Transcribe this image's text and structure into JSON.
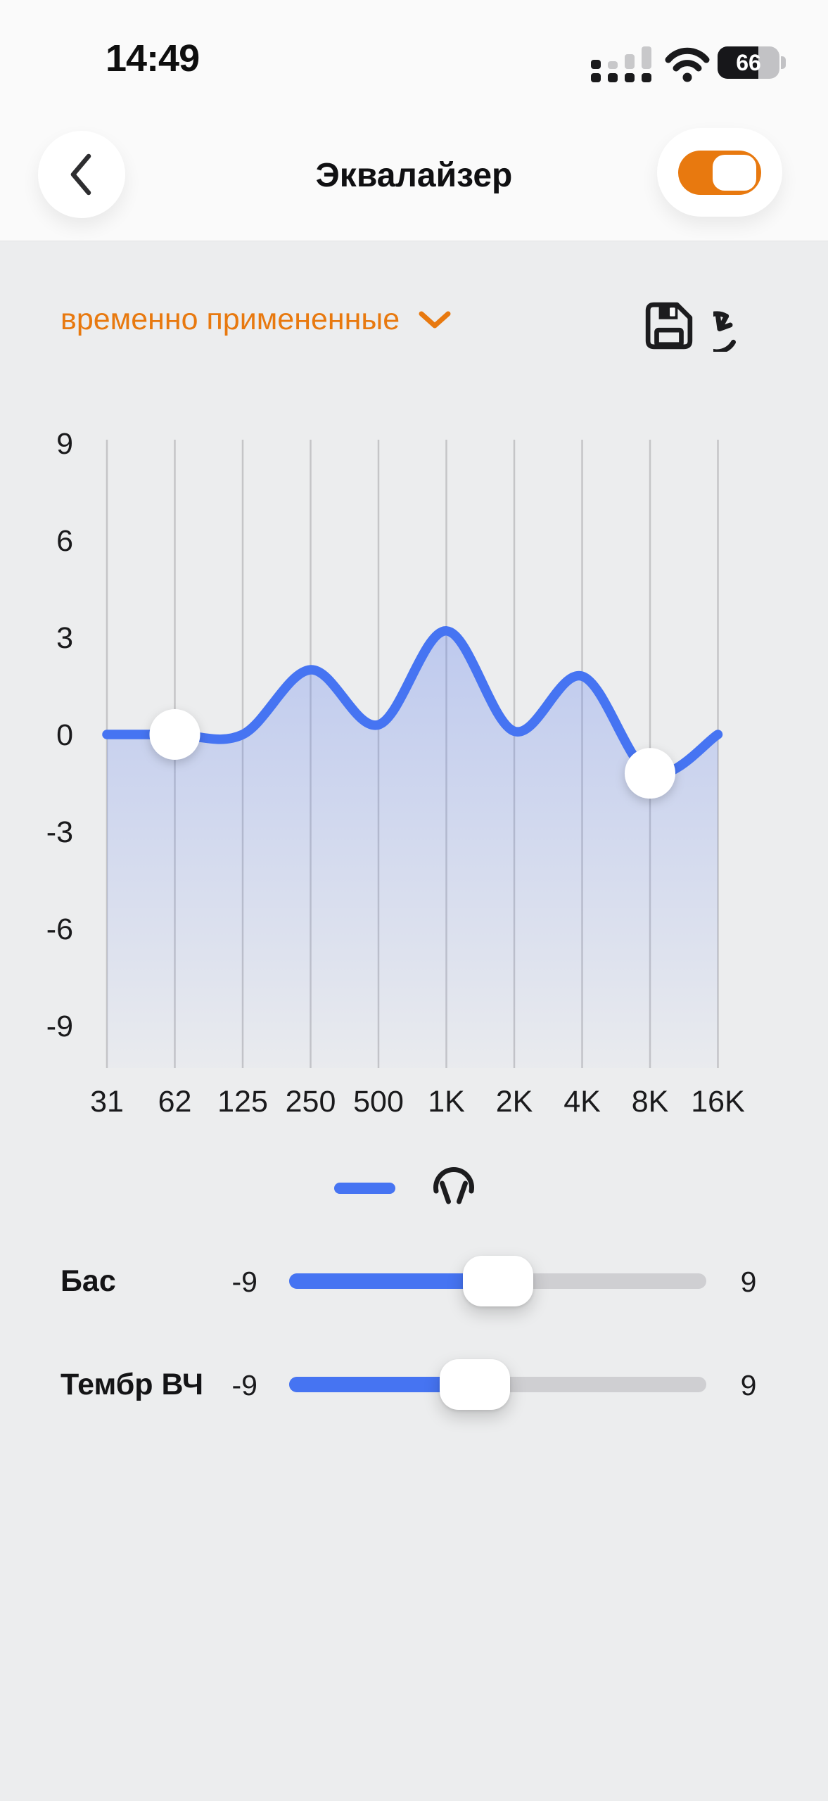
{
  "status_bar": {
    "time": "14:49",
    "battery_percent": "66",
    "signal_bars_filled": 1,
    "signal_bars_total": 4
  },
  "header": {
    "title": "Эквалайзер",
    "back_icon": "chevron-left",
    "toggle_on": true
  },
  "preset_bar": {
    "preset_label": "временно примененные",
    "chevron_icon": "chevron-down",
    "save_icon": "floppy-disk",
    "reset_icon": "undo-arrow"
  },
  "chart_data": {
    "type": "area",
    "title": "",
    "xlabel": "",
    "ylabel": "",
    "x_categories": [
      "31",
      "62",
      "125",
      "250",
      "500",
      "1K",
      "2K",
      "4K",
      "8K",
      "16K"
    ],
    "values": [
      0,
      0,
      0,
      2,
      0.3,
      3.2,
      0.1,
      1.8,
      -1.2,
      0
    ],
    "y_ticks": [
      9,
      6,
      3,
      0,
      -3,
      -6,
      -9
    ],
    "ylim": [
      -9,
      9
    ],
    "grid": "vertical-only",
    "legend_position": "bottom",
    "legend": {
      "line_swatch": true,
      "icon": "headphones"
    },
    "handles": [
      {
        "band": "62",
        "value": 0
      },
      {
        "band": "8K",
        "value": -1.2
      }
    ],
    "line_color": "#4674F2",
    "area_gradient_from": "rgba(92,126,238,0.45)",
    "area_gradient_to": "rgba(92,126,238,0.02)",
    "grid_color": "#C5C5C7",
    "tick_color": "#1A1A1C"
  },
  "sliders": [
    {
      "label": "Бас",
      "min": -9,
      "max": 9,
      "value": 0,
      "min_label": "-9",
      "max_label": "9"
    },
    {
      "label": "Тембр ВЧ",
      "min": -9,
      "max": 9,
      "value": -1,
      "min_label": "-9",
      "max_label": "9"
    }
  ],
  "colors": {
    "accent_orange": "#E8790F",
    "primary_blue": "#4674F2",
    "background": "#ECEDEE",
    "header_background": "#FAFAFA",
    "icon_dark": "#1C1C1E",
    "track_gray": "#CFCFD2"
  }
}
